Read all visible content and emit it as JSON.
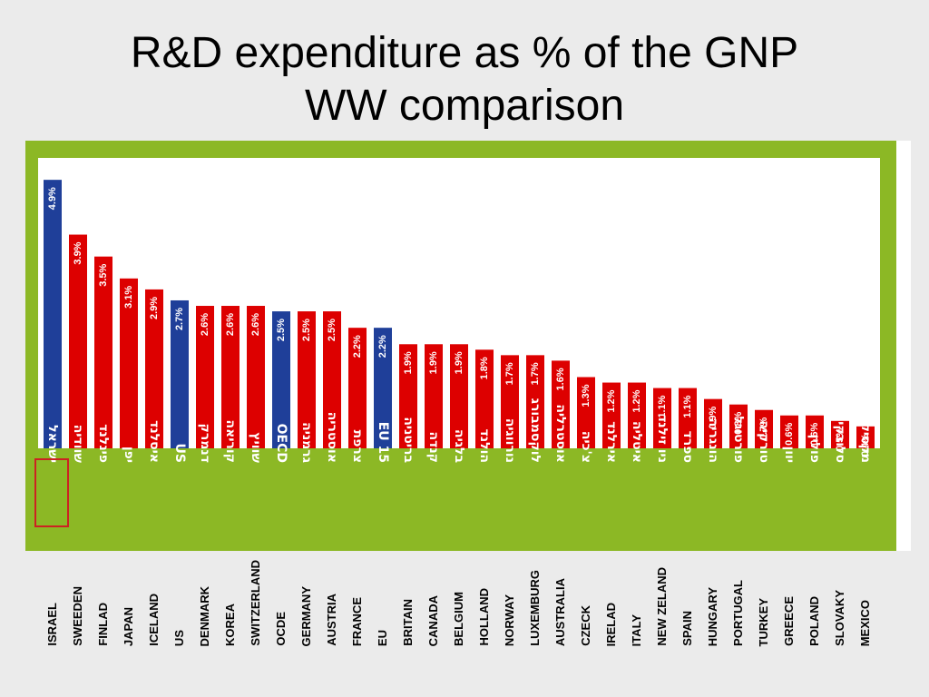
{
  "title_lines": [
    "R&D expenditure as % of the GNP",
    "WW comparison"
  ],
  "colors": {
    "highlight": "#1f3f99",
    "normal": "#dd0000",
    "frame": "#8cb825"
  },
  "chart_data": {
    "type": "bar",
    "title": "R&D expenditure as % of the GNP WW comparison",
    "unit": "%",
    "ylim": [
      0,
      5.3
    ],
    "grid": false,
    "legend": "none",
    "categories": [
      {
        "hebrew": "ישראל",
        "english": "ISRAEL",
        "value": 4.9,
        "label": "4.9%",
        "highlight": true,
        "boxed": true
      },
      {
        "hebrew": "שוודיה",
        "english": "SWEEDEN",
        "value": 3.9,
        "label": "3.9%",
        "highlight": false
      },
      {
        "hebrew": "פינלנד",
        "english": "FINLAD",
        "value": 3.5,
        "label": "3.5%",
        "highlight": false
      },
      {
        "hebrew": "יפן",
        "english": "JAPAN",
        "value": 3.1,
        "label": "3.1%",
        "highlight": false
      },
      {
        "hebrew": "איסלנד",
        "english": "ICELAND",
        "value": 2.9,
        "label": "2.9%",
        "highlight": false
      },
      {
        "hebrew": "US",
        "english": "US",
        "value": 2.7,
        "label": "2.7%",
        "highlight": true
      },
      {
        "hebrew": "דנמרק",
        "english": "DENMARK",
        "value": 2.6,
        "label": "2.6%",
        "highlight": false
      },
      {
        "hebrew": "קוריאה",
        "english": "KOREA",
        "value": 2.6,
        "label": "2.6%",
        "highlight": false
      },
      {
        "hebrew": "שוויץ",
        "english": "SWITZERLAND",
        "value": 2.6,
        "label": "2.6%",
        "highlight": false
      },
      {
        "hebrew": "OECD",
        "english": "OCDE",
        "value": 2.5,
        "label": "2.5%",
        "highlight": true
      },
      {
        "hebrew": "גרמניה",
        "english": "GERMANY",
        "value": 2.5,
        "label": "2.5%",
        "highlight": false
      },
      {
        "hebrew": "אוסטריה",
        "english": "AUSTRIA",
        "value": 2.5,
        "label": "2.5%",
        "highlight": false
      },
      {
        "hebrew": "צרפת",
        "english": "FRANCE",
        "value": 2.2,
        "label": "2.2%",
        "highlight": false
      },
      {
        "hebrew": "EU 15",
        "english": "EU",
        "value": 2.2,
        "label": "2.2%",
        "highlight": true
      },
      {
        "hebrew": "בריטניה",
        "english": "BRITAIN",
        "value": 1.9,
        "label": "1.9%",
        "highlight": false
      },
      {
        "hebrew": "קנדה",
        "english": "CANADA",
        "value": 1.9,
        "label": "1.9%",
        "highlight": false
      },
      {
        "hebrew": "בלגיה",
        "english": "BELGIUM",
        "value": 1.9,
        "label": "1.9%",
        "highlight": false
      },
      {
        "hebrew": "הולנד",
        "english": "HOLLAND",
        "value": 1.8,
        "label": "1.8%",
        "highlight": false
      },
      {
        "hebrew": "נורווגיה",
        "english": "NORWAY",
        "value": 1.7,
        "label": "1.7%",
        "highlight": false
      },
      {
        "hebrew": "לוקסמבורג",
        "english": "LUXEMBURG",
        "value": 1.7,
        "label": "1.7%",
        "highlight": false
      },
      {
        "hebrew": "אוסטרליה",
        "english": "AUSTRALIA",
        "value": 1.6,
        "label": "1.6%",
        "highlight": false
      },
      {
        "hebrew": "צ'כיה",
        "english": "CZECK",
        "value": 1.3,
        "label": "1.3%",
        "highlight": false
      },
      {
        "hebrew": "אירלנד",
        "english": "IRELAD",
        "value": 1.2,
        "label": "1.2%",
        "highlight": false
      },
      {
        "hebrew": "איטליה",
        "english": "ITALY",
        "value": 1.2,
        "label": "1.2%",
        "highlight": false
      },
      {
        "hebrew": "ניו זילנד",
        "english": "NEW ZELAND",
        "value": 1.1,
        "label": "1.1%",
        "highlight": false
      },
      {
        "hebrew": "ספרד",
        "english": "SPAIN",
        "value": 1.1,
        "label": "1.1%",
        "highlight": false
      },
      {
        "hebrew": "הונגריה",
        "english": "HUNGARY",
        "value": 0.9,
        "label": "0.9%",
        "highlight": false
      },
      {
        "hebrew": "פורטוגל",
        "english": "PORTUGAL",
        "value": 0.8,
        "label": "0.8%",
        "highlight": false
      },
      {
        "hebrew": "טורקיה",
        "english": "TURKEY",
        "value": 0.7,
        "label": "0.7%",
        "highlight": false
      },
      {
        "hebrew": "יוון",
        "english": "GREECE",
        "value": 0.6,
        "label": "0.6%",
        "highlight": false
      },
      {
        "hebrew": "פולין",
        "english": "POLAND",
        "value": 0.6,
        "label": "0.6%",
        "highlight": false
      },
      {
        "hebrew": "סלובקיה",
        "english": "SLOVAKY",
        "value": 0.5,
        "label": "0.5%",
        "highlight": false
      },
      {
        "hebrew": "מקסיקו",
        "english": "MEXICO",
        "value": 0.4,
        "label": "0.4%",
        "highlight": false
      }
    ]
  }
}
